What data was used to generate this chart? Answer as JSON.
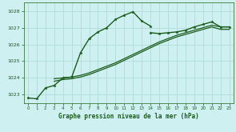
{
  "title": "Graphe pression niveau de la mer (hPa)",
  "background_color": "#cff0f0",
  "grid_color": "#aad8d8",
  "line_color": "#1a5c1a",
  "xlim": [
    -0.5,
    23.5
  ],
  "ylim": [
    1022.5,
    1028.5
  ],
  "yticks": [
    1023,
    1024,
    1025,
    1026,
    1027,
    1028
  ],
  "xticks": [
    0,
    1,
    2,
    3,
    4,
    5,
    6,
    7,
    8,
    9,
    10,
    11,
    12,
    13,
    14,
    15,
    16,
    17,
    18,
    19,
    20,
    21,
    22,
    23
  ],
  "series": [
    {
      "x": [
        0,
        1,
        2,
        3,
        4,
        5,
        6,
        7,
        8,
        9,
        10,
        11,
        12,
        13,
        14
      ],
      "y": [
        1022.8,
        1022.75,
        1023.4,
        1023.55,
        1024.0,
        1024.05,
        1025.5,
        1026.35,
        1026.75,
        1027.0,
        1027.5,
        1027.75,
        1027.95,
        1027.4,
        1027.1
      ],
      "has_marker": true,
      "marker_size": 2.5,
      "linewidth": 1.0
    },
    {
      "x": [
        14,
        15,
        16,
        17,
        18,
        19,
        20,
        21,
        22,
        23
      ],
      "y": [
        1026.7,
        1026.65,
        1026.7,
        1026.75,
        1026.85,
        1027.05,
        1027.2,
        1027.35,
        1027.05,
        1027.05
      ],
      "has_marker": true,
      "marker_size": 2.5,
      "linewidth": 1.0
    },
    {
      "x": [
        3,
        4,
        5,
        6,
        7,
        8,
        9,
        10,
        11,
        12,
        13,
        14,
        15,
        16,
        17,
        18,
        19,
        20,
        21,
        22,
        23
      ],
      "y": [
        1023.95,
        1024.0,
        1024.05,
        1024.15,
        1024.3,
        1024.5,
        1024.7,
        1024.9,
        1025.15,
        1025.4,
        1025.65,
        1025.9,
        1026.15,
        1026.35,
        1026.55,
        1026.7,
        1026.85,
        1027.0,
        1027.15,
        1027.05,
        1027.05
      ],
      "has_marker": false,
      "linewidth": 0.9
    },
    {
      "x": [
        3,
        4,
        5,
        6,
        7,
        8,
        9,
        10,
        11,
        12,
        13,
        14,
        15,
        16,
        17,
        18,
        19,
        20,
        21,
        22,
        23
      ],
      "y": [
        1023.8,
        1023.9,
        1023.95,
        1024.05,
        1024.2,
        1024.4,
        1024.6,
        1024.8,
        1025.05,
        1025.3,
        1025.55,
        1025.8,
        1026.05,
        1026.25,
        1026.45,
        1026.6,
        1026.75,
        1026.9,
        1027.05,
        1026.9,
        1026.9
      ],
      "has_marker": false,
      "linewidth": 0.9
    }
  ]
}
